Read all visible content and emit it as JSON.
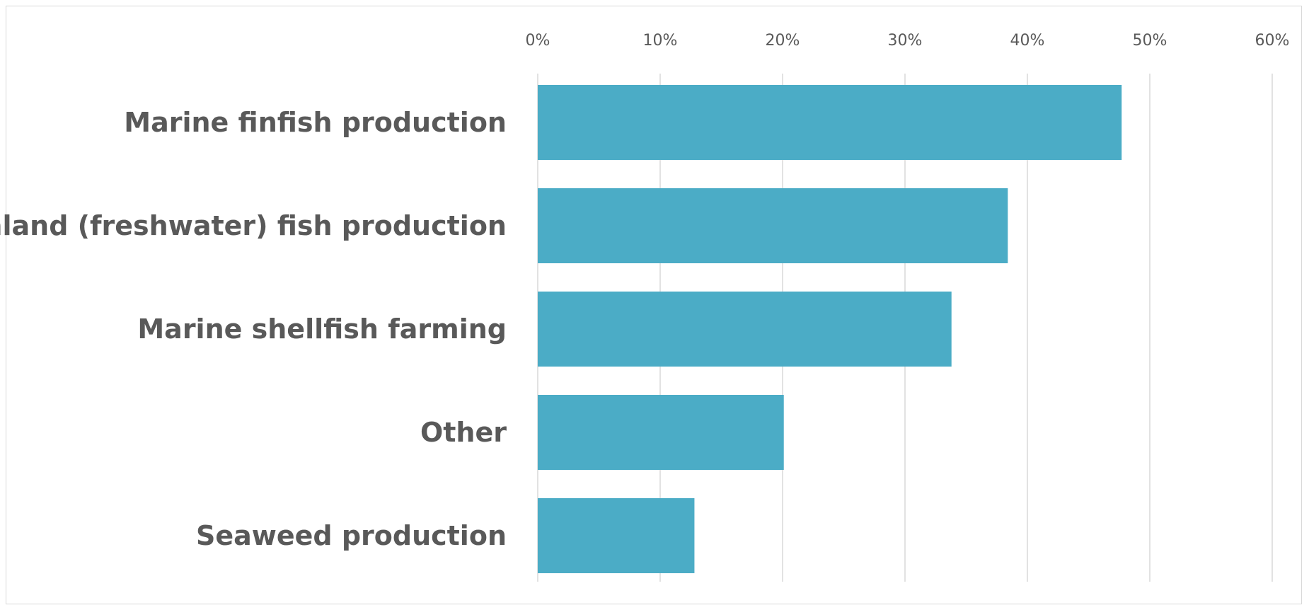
{
  "chart_data": {
    "type": "bar",
    "orientation": "horizontal",
    "title": "",
    "xlabel": "",
    "ylabel": "",
    "categories": [
      "Marine finfish production",
      "Inland (freshwater) fish production",
      "Marine shellfish farming",
      "Other",
      "Seaweed production"
    ],
    "values": [
      47.7,
      38.4,
      33.8,
      20.1,
      12.8
    ],
    "xlim": [
      0,
      60
    ],
    "ticks": [
      0,
      10,
      20,
      30,
      40,
      50,
      60
    ],
    "tick_labels": [
      "0%",
      "10%",
      "20%",
      "30%",
      "40%",
      "50%",
      "60%"
    ],
    "axis_position": "top",
    "grid": true,
    "legend": "none",
    "bar_color": "#4BACC6",
    "grid_color": "#d9d9d9",
    "text_color": "#595959"
  }
}
